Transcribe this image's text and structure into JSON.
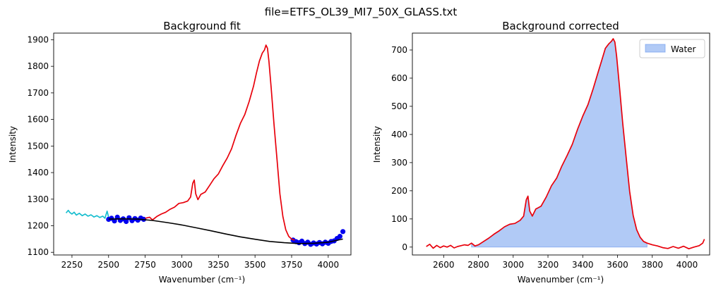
{
  "figure_title": "file=ETFS_OL39_MI7_50X_GLASS.txt",
  "colors": {
    "raw_low": "#17becf",
    "raw_peak": "#e8000b",
    "baseline_points": "#0000ee",
    "baseline_fit": "#000000",
    "corrected": "#e8000b",
    "water_fill": "#6495ed"
  },
  "chart_data": [
    {
      "type": "line",
      "title": "Background fit",
      "xlabel": "Wavenumber (cm⁻¹)",
      "ylabel": "Intensity",
      "xlim": [
        2125,
        4155
      ],
      "ylim": [
        1090,
        1925
      ],
      "xticks": [
        2250,
        2500,
        2750,
        3000,
        3250,
        3500,
        3750,
        4000
      ],
      "yticks": [
        1100,
        1200,
        1300,
        1400,
        1500,
        1600,
        1700,
        1800,
        1900
      ],
      "grid": false,
      "series": [
        {
          "color": "#17becf",
          "x": [
            2210,
            2225,
            2235,
            2250,
            2265,
            2280,
            2300,
            2320,
            2340,
            2360,
            2380,
            2400,
            2420,
            2440,
            2460,
            2475,
            2490,
            2500
          ],
          "y": [
            1248,
            1258,
            1250,
            1244,
            1251,
            1240,
            1247,
            1238,
            1244,
            1236,
            1241,
            1233,
            1238,
            1231,
            1236,
            1228,
            1255,
            1232
          ]
        },
        {
          "color": "#0000ee",
          "marker": "dot",
          "x": [
            2500,
            2520,
            2540,
            2560,
            2580,
            2600,
            2620,
            2640,
            2660,
            2680,
            2700,
            2720,
            2740,
            3760,
            3780,
            3800,
            3820,
            3840,
            3860,
            3880,
            3900,
            3920,
            3940,
            3960,
            3980,
            4000,
            4020,
            4040,
            4060,
            4080,
            4100
          ],
          "y": [
            1224,
            1228,
            1218,
            1232,
            1220,
            1226,
            1216,
            1230,
            1219,
            1227,
            1221,
            1229,
            1224,
            1146,
            1140,
            1136,
            1142,
            1133,
            1138,
            1130,
            1135,
            1131,
            1137,
            1132,
            1138,
            1134,
            1141,
            1143,
            1152,
            1160,
            1178
          ]
        },
        {
          "color": "#e8000b",
          "x": [
            2750,
            2780,
            2800,
            2830,
            2860,
            2890,
            2920,
            2950,
            2980,
            3010,
            3040,
            3060,
            3075,
            3085,
            3095,
            3110,
            3130,
            3160,
            3190,
            3220,
            3250,
            3280,
            3310,
            3340,
            3370,
            3400,
            3430,
            3460,
            3490,
            3510,
            3530,
            3550,
            3565,
            3575,
            3585,
            3595,
            3610,
            3630,
            3650,
            3670,
            3690,
            3710,
            3730,
            3750,
            3770
          ],
          "y": [
            1228,
            1232,
            1222,
            1235,
            1244,
            1251,
            1262,
            1270,
            1284,
            1287,
            1293,
            1308,
            1360,
            1372,
            1320,
            1298,
            1318,
            1327,
            1352,
            1377,
            1395,
            1426,
            1455,
            1490,
            1540,
            1585,
            1618,
            1668,
            1726,
            1775,
            1820,
            1850,
            1862,
            1880,
            1868,
            1818,
            1720,
            1580,
            1450,
            1320,
            1235,
            1185,
            1160,
            1150,
            1146
          ]
        },
        {
          "color": "#000000",
          "x": [
            2500,
            2600,
            2700,
            2800,
            2900,
            3000,
            3100,
            3200,
            3300,
            3400,
            3500,
            3600,
            3700,
            3800,
            3900,
            4000,
            4100
          ],
          "y": [
            1225,
            1226,
            1225,
            1220,
            1212,
            1203,
            1192,
            1181,
            1169,
            1158,
            1149,
            1141,
            1136,
            1133,
            1134,
            1138,
            1150
          ]
        }
      ]
    },
    {
      "type": "area",
      "title": "Background corrected",
      "xlabel": "Wavenumber (cm⁻¹)",
      "ylabel": "Intensity",
      "xlim": [
        2420,
        4130
      ],
      "ylim": [
        -28,
        760
      ],
      "xticks": [
        2600,
        2800,
        3000,
        3200,
        3400,
        3600,
        3800,
        4000
      ],
      "yticks": [
        0,
        100,
        200,
        300,
        400,
        500,
        600,
        700
      ],
      "grid": false,
      "legend": {
        "position": "top-right",
        "entries": [
          "Water"
        ]
      },
      "fill_range": [
        2750,
        3770
      ],
      "series": [
        {
          "color": "#e8000b",
          "x": [
            2500,
            2520,
            2540,
            2560,
            2580,
            2600,
            2620,
            2640,
            2660,
            2680,
            2700,
            2720,
            2740,
            2760,
            2780,
            2800,
            2830,
            2860,
            2890,
            2920,
            2950,
            2980,
            3010,
            3040,
            3060,
            3075,
            3085,
            3095,
            3110,
            3130,
            3160,
            3190,
            3220,
            3250,
            3280,
            3310,
            3340,
            3370,
            3400,
            3430,
            3460,
            3490,
            3510,
            3530,
            3550,
            3565,
            3575,
            3585,
            3595,
            3610,
            3630,
            3650,
            3670,
            3690,
            3710,
            3730,
            3750,
            3770,
            3800,
            3830,
            3860,
            3890,
            3920,
            3950,
            3980,
            4010,
            4040,
            4070,
            4090,
            4100
          ],
          "y": [
            2,
            10,
            -4,
            6,
            -2,
            4,
            0,
            6,
            -3,
            2,
            5,
            8,
            6,
            14,
            4,
            8,
            20,
            32,
            46,
            58,
            72,
            81,
            84,
            95,
            110,
            168,
            181,
            128,
            110,
            135,
            145,
            178,
            218,
            245,
            288,
            325,
            365,
            418,
            465,
            506,
            562,
            624,
            665,
            706,
            722,
            731,
            740,
            728,
            677,
            578,
            440,
            318,
            198,
            112,
            62,
            35,
            20,
            14,
            8,
            4,
            -2,
            -5,
            2,
            -4,
            3,
            -6,
            0,
            5,
            14,
            28
          ]
        }
      ]
    }
  ]
}
